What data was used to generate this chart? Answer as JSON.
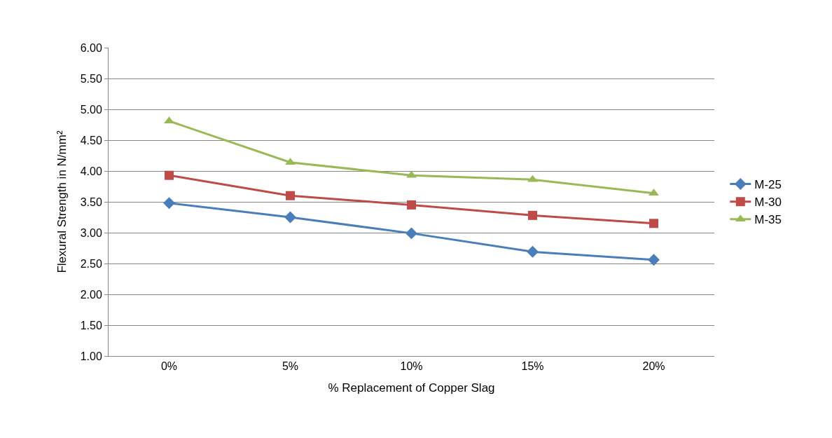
{
  "chart_data": {
    "type": "line",
    "xlabel": "% Replacement of Copper Slag",
    "ylabel": "Flexural Strength in N/mm²",
    "categories": [
      "0%",
      "5%",
      "10%",
      "15%",
      "20%"
    ],
    "series": [
      {
        "name": "M-25",
        "color": "#4a7ebb",
        "marker": "diamond",
        "values": [
          3.48,
          3.25,
          2.99,
          2.69,
          2.56
        ]
      },
      {
        "name": "M-30",
        "color": "#be4b48",
        "marker": "square",
        "values": [
          3.93,
          3.6,
          3.45,
          3.28,
          3.15
        ]
      },
      {
        "name": "M-35",
        "color": "#98b954",
        "marker": "triangle",
        "values": [
          4.81,
          4.14,
          3.93,
          3.86,
          3.64
        ]
      }
    ],
    "ylim": [
      1,
      6
    ],
    "yticks": [
      {
        "value": 1,
        "label": "1.00"
      },
      {
        "value": 1.5,
        "label": "1.50"
      },
      {
        "value": 2,
        "label": "2.00"
      },
      {
        "value": 2.5,
        "label": "2.50"
      },
      {
        "value": 3,
        "label": "3.00"
      },
      {
        "value": 3.5,
        "label": "3.50"
      },
      {
        "value": 4,
        "label": "4.00"
      },
      {
        "value": 4.5,
        "label": "4.50"
      },
      {
        "value": 5,
        "label": "5.00"
      },
      {
        "value": 5.5,
        "label": "5.50"
      },
      {
        "value": 6,
        "label": "6.00"
      }
    ],
    "grid": "y",
    "legend": "right"
  }
}
